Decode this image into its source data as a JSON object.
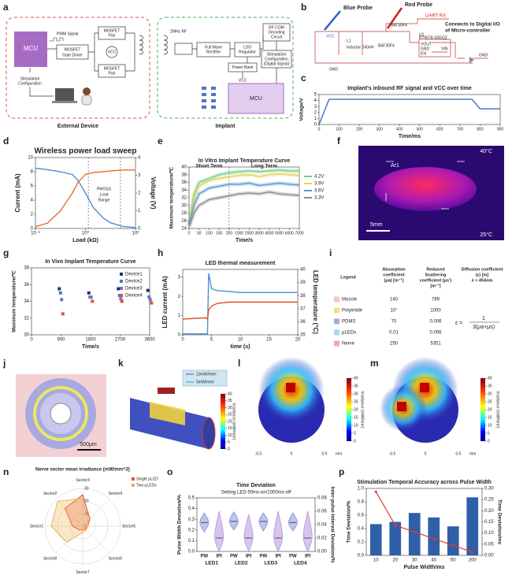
{
  "panel_labels": [
    "a",
    "b",
    "c",
    "d",
    "e",
    "f",
    "g",
    "h",
    "i",
    "j",
    "k",
    "l",
    "m",
    "n",
    "o",
    "p"
  ],
  "panel_a": {
    "mcu": "MCU",
    "pwm": "PWM Signal",
    "gate_driver": [
      "MOSFET",
      "Gate Driver"
    ],
    "mosfet_pair": [
      "MOSFET",
      "Pair"
    ],
    "vcc": "VCC",
    "stim_config": [
      "Stimulation",
      "Configuration"
    ],
    "external": "External Device",
    "rf": "2MHz RF",
    "rectifier": [
      "Full Wave",
      "Rectifier"
    ],
    "ldo": [
      "LDO",
      "Regulator"
    ],
    "rfcom": [
      "RF COM",
      "Decoding",
      "Circuit"
    ],
    "power_bank": "Power Bank",
    "implant_vcc": "VCC",
    "digital_config": [
      "Stimulation",
      "Configuration",
      "(Digital Signal)"
    ],
    "implant_mcu": "MCU",
    "implant": "Implant"
  },
  "panel_b": {
    "blue_probe": "Blue Probe",
    "red_probe": "Red Probe",
    "uart": "UART RX",
    "connects": [
      "Connects to Digital I/O",
      "of Micro-controller"
    ],
    "vcc": "VCC",
    "gnd": "GND",
    "l1": "L1",
    "inductor": "Inductor 240nH",
    "diode1": "BAT30F4",
    "diode2": "BAT30F4",
    "u1": "U1",
    "regulator": "RT9078-33GQZ",
    "vout": "VOUT",
    "gnd2": "GND",
    "en": "EN",
    "vin": "VIN",
    "gnd3": "GND"
  },
  "panel_f": {
    "max": "40°C",
    "min": "25°C",
    "roi": "Ar1",
    "scale": "5mm"
  },
  "table_i": {
    "headers": [
      [
        "Legend"
      ],
      [
        "Absorption",
        "coefficient",
        "(μa) [m⁻¹]"
      ],
      [
        "Reduced",
        "Scattering",
        "coefficient (μs')",
        "[m⁻¹]"
      ],
      [
        "Diffusion coefficient",
        "(ε) [m]",
        "λ = 454nm"
      ]
    ],
    "rows": [
      [
        "Muscle",
        "140",
        "789"
      ],
      [
        "Polyimide",
        "10⁷",
        "1000"
      ],
      [
        "PDMS",
        "70",
        "0.006"
      ],
      [
        "μLEDs",
        "0.01",
        "0.006"
      ],
      [
        "Nerve",
        "250",
        "5351"
      ]
    ],
    "row_colors": [
      "#f4c7b8",
      "#f7dc8a",
      "#a9a9d9",
      "#a6d8ee",
      "#f2a7a7"
    ],
    "formula_lhs": "ε =",
    "formula_num": "1",
    "formula_den": "3(μa+μs)"
  },
  "panel_j": {
    "scale": "500μm"
  },
  "panel_k": {
    "high": "13mW/mm²",
    "low": "5mW/mm²"
  },
  "maps": {
    "colorbar_label": "Irradiance (mW/mm²)",
    "colorbar_lim": [
      0,
      40
    ],
    "colorbar_ticks": [
      0,
      5,
      10,
      15,
      20,
      25,
      30,
      35,
      40
    ],
    "xticks": [
      -0.5,
      0,
      0.5
    ],
    "unit": "mm"
  },
  "chart_data": [
    {
      "type": "line",
      "title": "Implant's inbound RF signal and VCC over time",
      "xlabel": "Time/ms",
      "ylabel": "Voltage/V",
      "x": [
        0,
        50,
        100,
        700,
        760,
        800,
        900
      ],
      "series": [
        {
          "color": "#3a6fc4",
          "values": [
            0,
            4.2,
            4.2,
            4.2,
            4.2,
            2.6,
            2.6
          ]
        }
      ],
      "xlim": [
        0,
        900
      ],
      "xticks": [
        0,
        100,
        200,
        300,
        400,
        500,
        600,
        700,
        800,
        900
      ],
      "ylim": [
        0,
        5
      ],
      "yticks": [
        0,
        1,
        2,
        3,
        4,
        5
      ]
    },
    {
      "type": "line",
      "title": "Wireless power load sweep",
      "xlabel": "Load (kΩ)",
      "ylabel": "Current (mA)",
      "y2label": "Voltage (V)",
      "xscale": "log",
      "annotation": [
        "PMOSS",
        "Load",
        "Range"
      ],
      "x": [
        0.01,
        0.03,
        0.1,
        0.3,
        0.5,
        1,
        2,
        5,
        10,
        30,
        100
      ],
      "series": [
        {
          "color": "#4a8fd6",
          "values": [
            8.5,
            8.3,
            8,
            7.6,
            6.8,
            5,
            3,
            1.5,
            0.8,
            0.3,
            0.1
          ]
        },
        {
          "color": "#e8702a",
          "axis": "y2",
          "values": [
            0.1,
            0.3,
            1,
            2,
            2.6,
            3.05,
            3.15,
            3.2,
            3.25,
            3.3,
            3.3
          ]
        }
      ],
      "xlim": [
        0.01,
        100
      ],
      "xticks": [
        {
          "value": 0.01,
          "label": "10⁻²"
        },
        {
          "value": 1,
          "label": "10⁰"
        },
        {
          "value": 100,
          "label": "10²"
        }
      ],
      "ylim": [
        0,
        10
      ],
      "yticks": [
        0,
        2,
        4,
        6,
        8,
        10
      ],
      "y2lim": [
        0,
        4
      ],
      "y2ticks": [
        0,
        1,
        2,
        3,
        4
      ]
    },
    {
      "type": "line",
      "title": "In Vitro Implant Temperature Curve",
      "xlabel": "Time/s",
      "ylabel": "Maximum temperature/℃",
      "xscale": "broken",
      "annotation": [
        "Short Term",
        "Long Term"
      ],
      "legend": "right",
      "x": [
        0,
        25,
        50,
        100,
        150,
        200,
        1000,
        2000,
        3000,
        4000,
        5000,
        6000,
        7000
      ],
      "series": [
        {
          "name": "4.2V",
          "color": "#6fcf8a",
          "values": [
            25,
            33,
            36,
            37,
            38,
            38.5,
            38.8,
            39,
            38.8,
            39,
            39.2,
            39,
            39
          ]
        },
        {
          "name": "3.9V",
          "color": "#e8d35a",
          "values": [
            25,
            32,
            35,
            36.5,
            37,
            37.5,
            37.8,
            38,
            37.5,
            38,
            38.2,
            38,
            37.8
          ]
        },
        {
          "name": "3.6V",
          "color": "#5b9bd5",
          "values": [
            25,
            30,
            33,
            34.5,
            35,
            35.5,
            35.5,
            35.8,
            35.2,
            35.5,
            35.8,
            35.5,
            35.3
          ]
        },
        {
          "name": "3.3V",
          "color": "#8c8c8c",
          "values": [
            24.5,
            28,
            30,
            31.5,
            32,
            32.5,
            33,
            33.2,
            33,
            33.5,
            33,
            32.8,
            32.6
          ]
        }
      ],
      "xlim": [
        0,
        7000
      ],
      "xticks": [
        0,
        50,
        100,
        150,
        200,
        1000,
        2000,
        3000,
        4000,
        5000,
        6000,
        7000
      ],
      "ylim": [
        24,
        40
      ],
      "yticks": [
        24,
        26,
        28,
        30,
        32,
        34,
        36,
        38,
        40
      ]
    },
    {
      "type": "scatter",
      "title": "In Vivo Implant Temperature Curve",
      "xlabel": "Time/s",
      "ylabel": "Maximum temperature/℃",
      "legend": "upper right",
      "x": [
        900,
        1800,
        2700,
        3600
      ],
      "series": [
        {
          "name": "Device1",
          "color": "#23336b",
          "values": [
            35.5,
            35,
            35.5,
            35.3
          ]
        },
        {
          "name": "Device2",
          "color": "#4a78c8",
          "values": [
            35,
            34.5,
            34.7,
            34.5
          ]
        },
        {
          "name": "Device3",
          "color": "#7a6fc0",
          "values": [
            34.2,
            34.5,
            34.3,
            34.2
          ]
        },
        {
          "name": "Device4",
          "color": "#e0503c",
          "values": [
            32.5,
            34,
            34,
            33.8
          ]
        }
      ],
      "xlim": [
        0,
        3600
      ],
      "xticks": [
        0,
        900,
        1800,
        2700,
        3600
      ],
      "ylim": [
        30,
        38
      ],
      "yticks": [
        30,
        32,
        34,
        36,
        38
      ]
    },
    {
      "type": "line",
      "title": "LED thermal measurement",
      "xlabel": "time (s)",
      "ylabel": "LED current (mA)",
      "y2label": "LED temperature (°C)",
      "x": [
        0,
        4,
        4.3,
        4.5,
        5,
        6,
        8,
        10,
        15,
        20
      ],
      "series": [
        {
          "color": "#4a8fd6",
          "values": [
            0.05,
            0.05,
            0.05,
            3.2,
            2.4,
            2.3,
            2.25,
            2.2,
            2.2,
            2.2
          ]
        },
        {
          "color": "#e0502a",
          "axis": "y2",
          "values": [
            36.2,
            36.3,
            36.2,
            36.9,
            37.2,
            37.4,
            37.5,
            37.5,
            37.5,
            37.5
          ]
        }
      ],
      "xlim": [
        0,
        20
      ],
      "xticks": [
        0,
        5,
        10,
        15,
        20
      ],
      "ylim": [
        0,
        3.4
      ],
      "yticks": [
        0,
        1,
        2,
        3
      ],
      "y2lim": [
        35,
        40
      ],
      "y2ticks": [
        35,
        36,
        37,
        38,
        39,
        40
      ]
    },
    {
      "type": "radar",
      "title": "Nerve sector mean irradiance (mW/mm^2)",
      "legend": "upper right",
      "categories": [
        "Sector3",
        "Sector4",
        "Sector5",
        "Sector6",
        "Sector7",
        "Sector8",
        "Sector1",
        "Sector2"
      ],
      "series": [
        {
          "name": "Single μLED",
          "color": "#e8503a",
          "values": [
            25,
            8,
            4,
            3,
            3,
            4,
            8,
            20
          ]
        },
        {
          "name": "Two μLEDs",
          "color": "#f0b04a",
          "values": [
            22,
            6,
            4,
            4,
            5,
            18,
            25,
            28
          ]
        }
      ],
      "rlim": [
        0,
        30
      ],
      "rticks": [
        0,
        10,
        20,
        30
      ]
    },
    {
      "type": "violin",
      "title": "Time Deviation",
      "subtitle": "Setting LED 50ms-on/1000ms-off",
      "ylabel": "Pulse Width Deviation/%",
      "y2label": "Inter-pulse Interval Deviation/%",
      "categories": [
        "LED1",
        "LED2",
        "LED3",
        "LED4"
      ],
      "series": [
        {
          "name": "PW",
          "color": "#6a7fd0",
          "values": [
            0.27,
            0.28,
            0.28,
            0.27
          ],
          "ranges": [
            [
              0.18,
              0.36
            ],
            [
              0.2,
              0.37
            ],
            [
              0.19,
              0.36
            ],
            [
              0.19,
              0.36
            ]
          ]
        },
        {
          "name": "IPI",
          "axis": "y2",
          "color": "#a77fd6",
          "values": [
            0.02,
            0.02,
            0.02,
            0.02
          ],
          "ranges": [
            [
              0,
              0.06
            ],
            [
              0,
              0.055
            ],
            [
              0,
              0.06
            ],
            [
              0,
              0.06
            ]
          ]
        }
      ],
      "ylim": [
        0,
        0.5
      ],
      "yticks": [
        {
          "value": 0,
          "label": "0.0"
        },
        0.1,
        0.2,
        0.3,
        0.4,
        0.5
      ],
      "y2lim": [
        0,
        0.08
      ],
      "y2ticks": [
        {
          "value": 0,
          "label": "0.00"
        },
        0.02,
        0.04,
        0.06,
        0.08
      ]
    },
    {
      "type": "combo",
      "title": "Stimulation Temporal Accuracy across Pulse Width",
      "xlabel": "Pulse Width/ms",
      "ylabel": "Time Deviation/%",
      "y2label": "Time Deviation/ms",
      "categories": [
        "10",
        "20",
        "30",
        "40",
        "50",
        "200"
      ],
      "series": [
        {
          "kind": "line",
          "color": "#e03a2a",
          "values": [
            0.95,
            0.45,
            0.35,
            0.25,
            0.15,
            0.05
          ]
        },
        {
          "kind": "bar",
          "axis": "y2",
          "color": "#2f5fa7",
          "values": [
            0.14,
            0.15,
            0.19,
            0.17,
            0.13,
            0.26
          ]
        }
      ],
      "ylim": [
        0,
        1
      ],
      "yticks": [
        {
          "value": 0,
          "label": "0.0"
        },
        0.2,
        0.4,
        0.6,
        0.8,
        {
          "value": 1,
          "label": "1.0"
        }
      ],
      "y2lim": [
        0,
        0.3
      ],
      "y2ticks": [
        {
          "value": 0,
          "label": "0.00"
        },
        0.05,
        {
          "value": 0.1,
          "label": "0.10"
        },
        0.15,
        {
          "value": 0.2,
          "label": "0.20"
        },
        0.25,
        {
          "value": 0.3,
          "label": "0.30"
        }
      ]
    }
  ]
}
